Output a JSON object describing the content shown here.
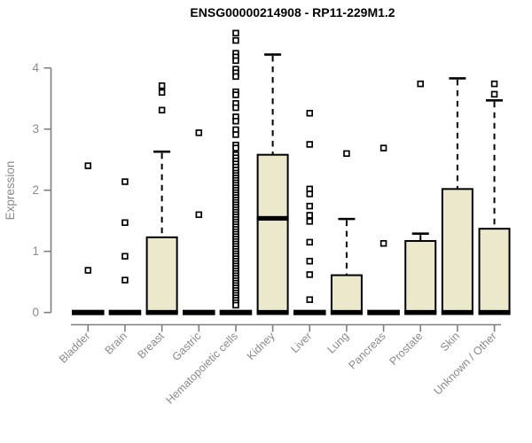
{
  "chart_data": {
    "type": "boxplot",
    "title": "ENSG00000214908 - RP11-229M1.2",
    "ylabel": "Expression",
    "xlabel": "",
    "y_ticks": [
      0,
      1,
      2,
      3,
      4
    ],
    "ylim": [
      0,
      4.6
    ],
    "grid": false,
    "legend": "none",
    "categories": [
      "Bladder",
      "Brain",
      "Breast",
      "Gastric",
      "Hematopoietic cells",
      "Kidney",
      "Liver",
      "Lung",
      "Pancreas",
      "Prostate",
      "Skin",
      "Unknown / Other"
    ],
    "boxes": [
      {
        "label": "Bladder",
        "q1": 0,
        "median": 0,
        "q3": 0,
        "whisker_low": 0,
        "whisker_high": 0,
        "outliers": [
          2.4,
          0.69
        ]
      },
      {
        "label": "Brain",
        "q1": 0,
        "median": 0,
        "q3": 0,
        "whisker_low": 0,
        "whisker_high": 0,
        "outliers": [
          2.14,
          1.47,
          0.92,
          0.53
        ]
      },
      {
        "label": "Breast",
        "q1": 0,
        "median": 0,
        "q3": 1.23,
        "whisker_low": 0,
        "whisker_high": 2.63,
        "outliers": [
          3.71,
          3.6,
          3.31
        ]
      },
      {
        "label": "Gastric",
        "q1": 0,
        "median": 0,
        "q3": 0,
        "whisker_low": 0,
        "whisker_high": 0,
        "outliers": [
          2.94,
          1.6
        ]
      },
      {
        "label": "Hematopoietic cells",
        "q1": 0,
        "median": 0,
        "q3": 0,
        "whisker_low": 0,
        "whisker_high": 0,
        "outliers": [
          4.57,
          4.45,
          4.24,
          4.18,
          4.12,
          3.98,
          3.92,
          3.86,
          3.61,
          3.56,
          3.42,
          3.35,
          3.2,
          3.13,
          2.99,
          2.91,
          2.74,
          2.69,
          2.58,
          2.53,
          2.48,
          2.43,
          2.38,
          2.33,
          2.28,
          2.24,
          2.2,
          2.16,
          2.12,
          2.08,
          2.04,
          2.0,
          1.96,
          1.92,
          1.88,
          1.84,
          1.8,
          1.76,
          1.72,
          1.68,
          1.64,
          1.6,
          1.56,
          1.52,
          1.48,
          1.44,
          1.4,
          1.36,
          1.32,
          1.28,
          1.24,
          1.2,
          1.16,
          1.12,
          1.08,
          1.04,
          1.0,
          0.96,
          0.92,
          0.88,
          0.84,
          0.8,
          0.76,
          0.72,
          0.68,
          0.64,
          0.6,
          0.56,
          0.52,
          0.48,
          0.44,
          0.4,
          0.36,
          0.32,
          0.28,
          0.24,
          0.2,
          0.16,
          0.12
        ]
      },
      {
        "label": "Kidney",
        "q1": 0,
        "median": 1.54,
        "q3": 2.58,
        "whisker_low": 0,
        "whisker_high": 4.22,
        "outliers": []
      },
      {
        "label": "Liver",
        "q1": 0,
        "median": 0,
        "q3": 0,
        "whisker_low": 0,
        "whisker_high": 0,
        "outliers": [
          3.26,
          2.75,
          2.02,
          1.94,
          1.74,
          1.59,
          1.49,
          1.15,
          0.84,
          0.62,
          0.21
        ]
      },
      {
        "label": "Lung",
        "q1": 0,
        "median": 0,
        "q3": 0.61,
        "whisker_low": 0,
        "whisker_high": 1.53,
        "outliers": [
          2.6
        ]
      },
      {
        "label": "Pancreas",
        "q1": 0,
        "median": 0,
        "q3": 0,
        "whisker_low": 0,
        "whisker_high": 0,
        "outliers": [
          2.69,
          1.13
        ]
      },
      {
        "label": "Prostate",
        "q1": 0,
        "median": 0,
        "q3": 1.17,
        "whisker_low": 0,
        "whisker_high": 1.29,
        "outliers": [
          3.74
        ]
      },
      {
        "label": "Skin",
        "q1": 0,
        "median": 0,
        "q3": 2.02,
        "whisker_low": 0,
        "whisker_high": 3.83,
        "outliers": []
      },
      {
        "label": "Unknown / Other",
        "q1": 0,
        "median": 0,
        "q3": 1.37,
        "whisker_low": 0,
        "whisker_high": 3.47,
        "outliers": [
          3.74,
          3.57
        ]
      }
    ],
    "colors": {
      "box_fill": "#ECE8CC",
      "box_stroke": "#000000",
      "outlier_fill": "#ffffff",
      "axis_color": "#7f7f7f",
      "label_color": "#8a8a8a",
      "title_color": "#000000",
      "background": "#ffffff"
    }
  }
}
